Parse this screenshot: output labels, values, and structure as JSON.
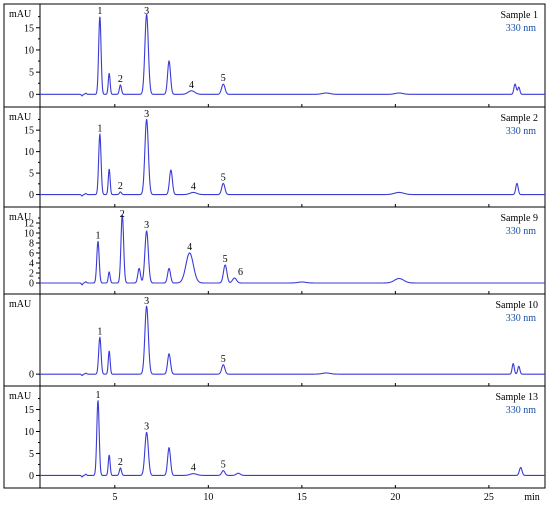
{
  "chart_data": {
    "type": "line",
    "x_axis": {
      "range": [
        1,
        28
      ],
      "ticks": [
        5,
        10,
        15,
        20,
        25
      ],
      "unit_label": "min"
    },
    "y_label": "mAU",
    "detection": "330 nm",
    "panels": [
      {
        "title": "Sample 1",
        "wavelength": "330 nm",
        "ylim": [
          -1.5,
          19
        ],
        "yticks": [
          0,
          5,
          10,
          15
        ],
        "baseline": 0,
        "peaks": [
          {
            "t": 4.2,
            "h": 17.5,
            "w": 0.09,
            "label": "1"
          },
          {
            "t": 4.7,
            "h": 4.7,
            "w": 0.07
          },
          {
            "t": 5.3,
            "h": 2.1,
            "w": 0.08,
            "label": "2"
          },
          {
            "t": 6.7,
            "h": 18.0,
            "w": 0.13,
            "label": "3"
          },
          {
            "t": 7.9,
            "h": 7.5,
            "w": 0.11
          },
          {
            "t": 9.1,
            "h": 0.8,
            "w": 0.25,
            "label": "4"
          },
          {
            "t": 10.8,
            "h": 2.3,
            "w": 0.13,
            "label": "5"
          },
          {
            "t": 16.3,
            "h": 0.3,
            "w": 0.3
          },
          {
            "t": 20.2,
            "h": 0.3,
            "w": 0.3
          },
          {
            "t": 26.4,
            "h": 2.3,
            "w": 0.09
          },
          {
            "t": 26.6,
            "h": 1.6,
            "w": 0.08
          }
        ]
      },
      {
        "title": "Sample 2",
        "wavelength": "330 nm",
        "ylim": [
          -1.5,
          19
        ],
        "yticks": [
          0,
          5,
          10,
          15
        ],
        "baseline": 0,
        "peaks": [
          {
            "t": 4.2,
            "h": 14.0,
            "w": 0.09,
            "label": "1"
          },
          {
            "t": 4.7,
            "h": 5.9,
            "w": 0.07
          },
          {
            "t": 5.3,
            "h": 0.6,
            "w": 0.08,
            "label": "2"
          },
          {
            "t": 6.7,
            "h": 17.5,
            "w": 0.13,
            "label": "3"
          },
          {
            "t": 8.0,
            "h": 5.7,
            "w": 0.11
          },
          {
            "t": 9.2,
            "h": 0.5,
            "w": 0.25,
            "label": "4"
          },
          {
            "t": 10.8,
            "h": 2.6,
            "w": 0.12,
            "label": "5"
          },
          {
            "t": 20.2,
            "h": 0.5,
            "w": 0.35
          },
          {
            "t": 26.5,
            "h": 2.6,
            "w": 0.09
          }
        ]
      },
      {
        "title": "Sample 9",
        "wavelength": "330 nm",
        "ylim": [
          -1,
          14
        ],
        "yticks": [
          0,
          2,
          4,
          6,
          8,
          10,
          12
        ],
        "baseline": 0,
        "peaks": [
          {
            "t": 4.1,
            "h": 8.3,
            "w": 0.09,
            "label": "1"
          },
          {
            "t": 4.7,
            "h": 2.2,
            "w": 0.07
          },
          {
            "t": 5.4,
            "h": 13.6,
            "w": 0.1,
            "label": "2"
          },
          {
            "t": 6.3,
            "h": 2.9,
            "w": 0.1
          },
          {
            "t": 6.7,
            "h": 10.4,
            "w": 0.13,
            "label": "3"
          },
          {
            "t": 7.9,
            "h": 2.9,
            "w": 0.11
          },
          {
            "t": 9.0,
            "h": 6.0,
            "w": 0.28,
            "label": "4"
          },
          {
            "t": 10.9,
            "h": 3.6,
            "w": 0.13,
            "label": "5"
          },
          {
            "t": 11.4,
            "h": 1.0,
            "w": 0.15,
            "label": "6"
          },
          {
            "t": 15.0,
            "h": 0.2,
            "w": 0.3
          },
          {
            "t": 20.2,
            "h": 0.9,
            "w": 0.35
          }
        ]
      },
      {
        "title": "Sample 10",
        "wavelength": "330 nm",
        "ylim": [
          -1.5,
          19
        ],
        "yticks": [
          0
        ],
        "baseline": 0,
        "peaks": [
          {
            "t": 4.2,
            "h": 9.4,
            "w": 0.09,
            "label": "1"
          },
          {
            "t": 4.7,
            "h": 5.9,
            "w": 0.07
          },
          {
            "t": 6.7,
            "h": 17.4,
            "w": 0.13,
            "label": "3"
          },
          {
            "t": 7.9,
            "h": 5.2,
            "w": 0.11
          },
          {
            "t": 10.8,
            "h": 2.4,
            "w": 0.12,
            "label": "5"
          },
          {
            "t": 16.3,
            "h": 0.3,
            "w": 0.3
          },
          {
            "t": 26.3,
            "h": 2.7,
            "w": 0.08
          },
          {
            "t": 26.6,
            "h": 2.0,
            "w": 0.08
          }
        ]
      },
      {
        "title": "Sample 13",
        "wavelength": "330 nm",
        "ylim": [
          -1.5,
          19
        ],
        "yticks": [
          0,
          5,
          10,
          15
        ],
        "baseline": 0,
        "peaks": [
          {
            "t": 4.1,
            "h": 17.0,
            "w": 0.09,
            "label": "1"
          },
          {
            "t": 4.7,
            "h": 4.6,
            "w": 0.07
          },
          {
            "t": 5.3,
            "h": 1.7,
            "w": 0.08,
            "label": "2"
          },
          {
            "t": 6.7,
            "h": 9.8,
            "w": 0.13,
            "label": "3"
          },
          {
            "t": 7.9,
            "h": 6.3,
            "w": 0.11
          },
          {
            "t": 9.2,
            "h": 0.4,
            "w": 0.25,
            "label": "4"
          },
          {
            "t": 10.8,
            "h": 1.1,
            "w": 0.12,
            "label": "5"
          },
          {
            "t": 11.6,
            "h": 0.5,
            "w": 0.15
          },
          {
            "t": 26.7,
            "h": 1.8,
            "w": 0.1
          }
        ]
      }
    ]
  }
}
